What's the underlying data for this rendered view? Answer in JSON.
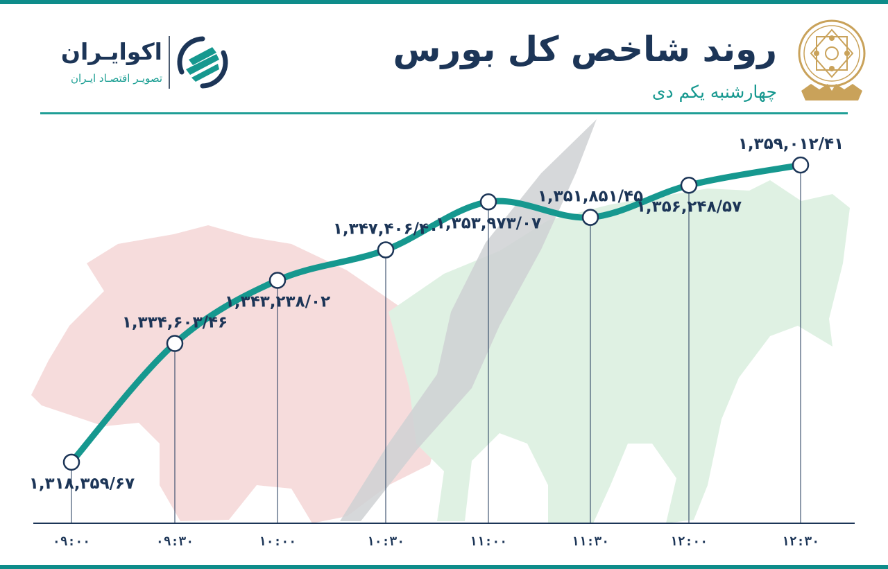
{
  "header": {
    "title": "روند شاخص کل بورس",
    "subtitle": "چهارشنبه یکم دی"
  },
  "brand": {
    "name": "اکوایـران",
    "tagline": "تصویـر اقتصـاد ایـران"
  },
  "colors": {
    "line": "#16988f",
    "marker_fill": "#ffffff",
    "marker_stroke": "#1c3557",
    "text": "#1c3557",
    "accent": "#0e8c8a",
    "bear": "#f6dcdc",
    "bull": "#dff1e3"
  },
  "chart_data": {
    "type": "line",
    "xlabel": "",
    "ylabel": "",
    "ylim": [
      1310000,
      1365000
    ],
    "grid": false,
    "categories": [
      "۰۹:۰۰",
      "۰۹:۳۰",
      "۱۰:۰۰",
      "۱۰:۳۰",
      "۱۱:۰۰",
      "۱۱:۳۰",
      "۱۲:۰۰",
      "۱۲:۳۰"
    ],
    "values": [
      1318359.67,
      1334603.46,
      1343238.02,
      1347406.4,
      1353973.07,
      1351851.45,
      1356248.57,
      1359012.41
    ],
    "labels": [
      "۱,۳۱۸,۳۵۹/۶۷",
      "۱,۳۳۴,۶۰۳/۴۶",
      "۱,۳۴۳,۲۳۸/۰۲",
      "۱,۳۴۷,۴۰۶/۴۰",
      "۱,۳۵۳,۹۷۳/۰۷",
      "۱,۳۵۱,۸۵۱/۴۵",
      "۱,۳۵۶,۲۴۸/۵۷",
      "۱,۳۵۹,۰۱۲/۴۱"
    ]
  }
}
